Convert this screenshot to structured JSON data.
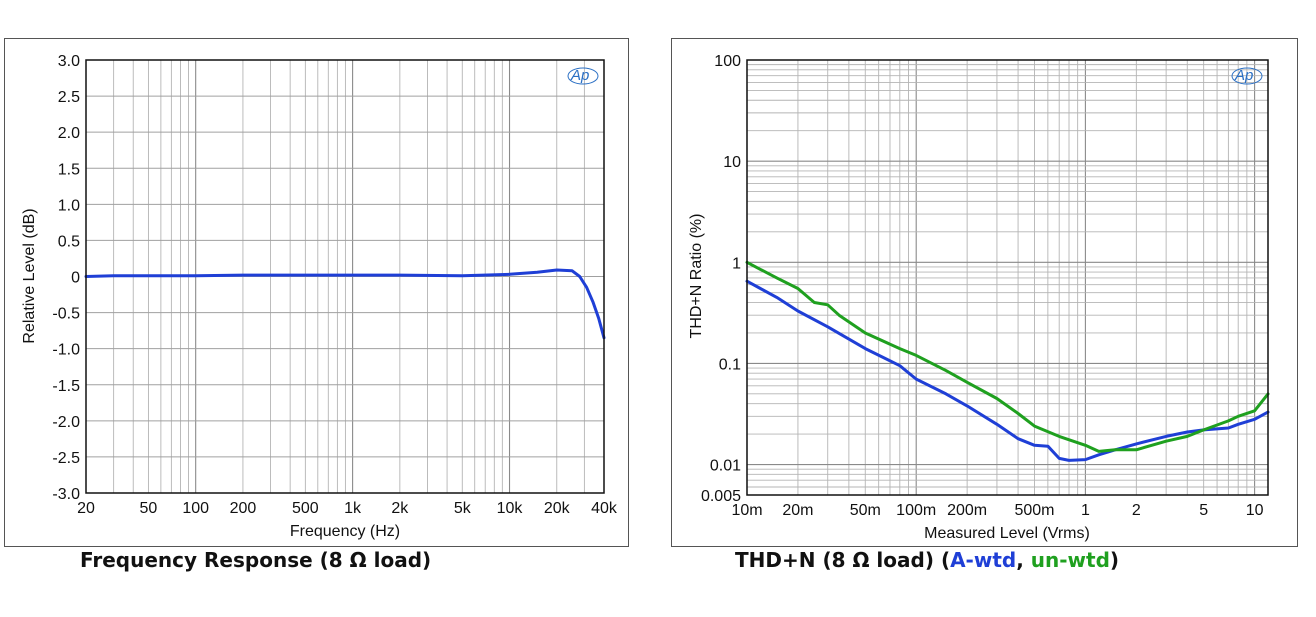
{
  "charts": {
    "left": {
      "caption": "Frequency Response (8 Ω load)",
      "xlabel": "Frequency (Hz)",
      "ylabel": "Relative Level (dB)",
      "logo": "Ap"
    },
    "right": {
      "caption_main": "THD+N (8 Ω load) (",
      "caption_sep": ", ",
      "caption_end": ")",
      "xlabel": "Measured Level (Vrms)",
      "ylabel": "THD+N Ratio (%)",
      "logo": "Ap"
    }
  },
  "chart_data": [
    {
      "type": "line",
      "title": "Frequency Response (8 Ω load)",
      "xlabel": "Frequency (Hz)",
      "ylabel": "Relative Level (dB)",
      "xscale": "log",
      "xlim": [
        20,
        40000
      ],
      "ylim": [
        -3.0,
        3.0
      ],
      "xticks": [
        20,
        50,
        100,
        200,
        500,
        1000,
        2000,
        5000,
        10000,
        20000,
        40000
      ],
      "xticklabels": [
        "20",
        "50",
        "100",
        "200",
        "500",
        "1k",
        "2k",
        "5k",
        "10k",
        "20k",
        "40k"
      ],
      "yticks": [
        3.0,
        2.5,
        2.0,
        1.5,
        1.0,
        0.5,
        0,
        -0.5,
        -1.0,
        -1.5,
        -2.0,
        -2.5,
        -3.0
      ],
      "yticklabels": [
        "3.0",
        "2.5",
        "2.0",
        "1.5",
        "1.0",
        "0.5",
        "0",
        "-0.5",
        "-1.0",
        "-1.5",
        "-2.0",
        "-2.5",
        "-3.0"
      ],
      "grid": true,
      "series": [
        {
          "color": "#1f3fd6",
          "x": [
            20,
            30,
            50,
            100,
            200,
            500,
            1000,
            2000,
            5000,
            10000,
            15000,
            20000,
            25000,
            28000,
            31000,
            34000,
            37000,
            40000
          ],
          "y": [
            0.0,
            0.01,
            0.01,
            0.01,
            0.02,
            0.02,
            0.02,
            0.02,
            0.01,
            0.03,
            0.06,
            0.09,
            0.08,
            0.0,
            -0.15,
            -0.35,
            -0.58,
            -0.85
          ]
        }
      ]
    },
    {
      "type": "line",
      "title": "THD+N (8 Ω load) (A-wtd, un-wtd)",
      "xlabel": "Measured Level (Vrms)",
      "ylabel": "THD+N Ratio (%)",
      "xscale": "log",
      "yscale": "log",
      "xlim": [
        0.01,
        12
      ],
      "ylim": [
        0.005,
        100
      ],
      "xticks": [
        0.01,
        0.02,
        0.05,
        0.1,
        0.2,
        0.5,
        1,
        2,
        5,
        10
      ],
      "xticklabels": [
        "10m",
        "20m",
        "50m",
        "100m",
        "200m",
        "500m",
        "1",
        "2",
        "5",
        "10"
      ],
      "yticks": [
        100,
        10,
        1,
        0.1,
        0.01,
        0.005
      ],
      "yticklabels": [
        "100",
        "10",
        "1",
        "0.1",
        "0.01",
        "0.005"
      ],
      "grid": true,
      "series": [
        {
          "name": "A-wtd",
          "color": "#1f3fd6",
          "x": [
            0.01,
            0.012,
            0.015,
            0.02,
            0.03,
            0.05,
            0.08,
            0.1,
            0.15,
            0.2,
            0.3,
            0.4,
            0.5,
            0.6,
            0.7,
            0.8,
            1.0,
            1.2,
            1.5,
            2,
            3,
            4,
            5,
            7,
            8,
            10,
            12
          ],
          "y": [
            0.65,
            0.55,
            0.45,
            0.33,
            0.23,
            0.14,
            0.095,
            0.07,
            0.05,
            0.038,
            0.025,
            0.018,
            0.0155,
            0.0152,
            0.0115,
            0.011,
            0.0112,
            0.0125,
            0.014,
            0.016,
            0.019,
            0.021,
            0.022,
            0.023,
            0.025,
            0.028,
            0.033
          ]
        },
        {
          "name": "un-wtd",
          "color": "#1fa01f",
          "x": [
            0.01,
            0.012,
            0.015,
            0.02,
            0.025,
            0.03,
            0.035,
            0.05,
            0.08,
            0.1,
            0.15,
            0.2,
            0.3,
            0.4,
            0.5,
            0.7,
            1.0,
            1.2,
            1.5,
            2,
            3,
            4,
            5,
            7,
            8,
            10,
            12
          ],
          "y": [
            1.0,
            0.85,
            0.7,
            0.55,
            0.4,
            0.38,
            0.3,
            0.2,
            0.14,
            0.12,
            0.085,
            0.065,
            0.045,
            0.032,
            0.024,
            0.019,
            0.0155,
            0.0135,
            0.014,
            0.014,
            0.017,
            0.019,
            0.022,
            0.027,
            0.03,
            0.034,
            0.05
          ]
        }
      ]
    }
  ]
}
